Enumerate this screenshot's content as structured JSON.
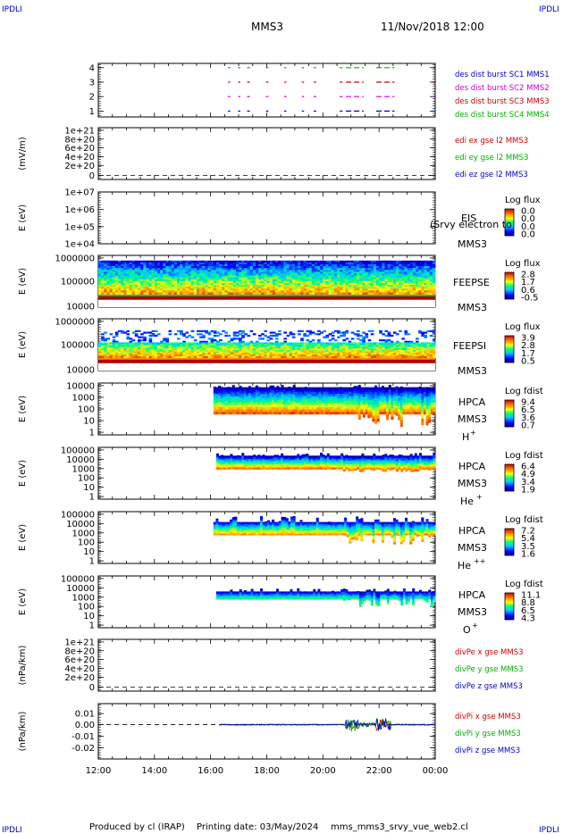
{
  "corner_tags": [
    "IPDLI",
    "IPDLI",
    "IPDLI",
    "IPDLI"
  ],
  "header": {
    "mission": "MMS3",
    "datetime": "11/Nov/2018 12:00"
  },
  "footer": {
    "produced_by": "Produced by cl (IRAP)",
    "printing_date": "Printing date: 03/May/2024",
    "script": "mms_mms3_srvy_vue_web2.cl"
  },
  "colors": {
    "black": "#000000",
    "red": "#cc0000",
    "green": "#00b000",
    "blue": "#0000cc",
    "magenta": "#cc00cc",
    "dashed_zero": "#000000"
  },
  "chart_data": {
    "type": "heatmap",
    "time_axis": {
      "range": [
        "12:00",
        "00:00"
      ],
      "ticks": [
        "12:00",
        "14:00",
        "16:00",
        "18:00",
        "20:00",
        "22:00",
        "00:00"
      ]
    },
    "panels": [
      {
        "id": "burst",
        "type": "scatter",
        "yticks": [
          "4",
          "3",
          "2",
          "1"
        ],
        "ylim": [
          0.5,
          4.5
        ],
        "legend": [
          {
            "text": "des dist burst SC1 MMS1",
            "color": "#0000cc"
          },
          {
            "text": "des dist burst SC2 MMS2",
            "color": "#cc00cc"
          },
          {
            "text": "des dist burst SC3 MMS3",
            "color": "#cc0000"
          },
          {
            "text": "des dist burst SC4 MMS4",
            "color": "#00b000"
          }
        ],
        "series": [
          {
            "level": 4,
            "color": "#00b000"
          },
          {
            "level": 3,
            "color": "#cc0000"
          },
          {
            "level": 2,
            "color": "#cc00cc"
          },
          {
            "level": 1,
            "color": "#0000cc"
          }
        ],
        "intervals": [
          [
            16.62,
            16.7
          ],
          [
            16.98,
            17.06
          ],
          [
            17.3,
            17.4
          ],
          [
            17.97,
            18.06
          ],
          [
            18.62,
            18.7
          ],
          [
            19.25,
            19.33
          ],
          [
            19.67,
            19.76
          ],
          [
            20.6,
            20.7
          ],
          [
            20.82,
            21.45
          ],
          [
            21.9,
            22.55
          ]
        ]
      },
      {
        "id": "edi",
        "type": "line",
        "ylabel": "(mV/m)",
        "yticks": [
          "1e+21",
          "8e+20",
          "6e+20",
          "4e+20",
          "2e+20",
          "0"
        ],
        "ylim": [
          0,
          1e+21
        ],
        "legend": [
          {
            "text": "edi ex gse l2 MMS3",
            "color": "#cc0000"
          },
          {
            "text": "edi ey gse l2 MMS3",
            "color": "#00b000"
          },
          {
            "text": "edi ez gse l2 MMS3",
            "color": "#0000cc"
          }
        ]
      },
      {
        "id": "eis",
        "type": "heatmap",
        "ylabel": "E (eV)",
        "yticks": [
          "1e+07",
          "1e+06",
          "1e+05",
          "1e+04"
        ],
        "ylim": [
          10000.0,
          10000000.0
        ],
        "instrument": "EIS",
        "spacecraft": "MMS3",
        "overlay": "(Srvy electron to",
        "cbar_title": "Log flux",
        "cbar_ticks": [
          "0.0",
          "0.0",
          "0.0",
          "0.0"
        ]
      },
      {
        "id": "feepse",
        "type": "heatmap",
        "ylabel": "E (eV)",
        "yticks": [
          "1000000",
          "100000",
          "10000"
        ],
        "ylim": [
          10000.0,
          1000000.0
        ],
        "instrument": "FEEPSE",
        "spacecraft": "MMS3",
        "cbar_title": "Log flux",
        "cbar_ticks": [
          "2.8",
          "1.7",
          "0.6",
          "-0.5"
        ]
      },
      {
        "id": "feepsi",
        "type": "heatmap",
        "ylabel": "E (eV)",
        "yticks": [
          "1000000",
          "100000",
          "10000"
        ],
        "ylim": [
          10000.0,
          1000000.0
        ],
        "instrument": "FEEPSI",
        "spacecraft": "MMS3",
        "cbar_title": "Log flux",
        "cbar_ticks": [
          "3.9",
          "2.8",
          "1.7",
          "0.5"
        ]
      },
      {
        "id": "hpca_h",
        "type": "heatmap",
        "ylabel": "E (eV)",
        "yticks": [
          "10000",
          "1000",
          "100",
          "10",
          "1"
        ],
        "ylim": [
          1,
          30000
        ],
        "instrument": "HPCA",
        "spacecraft": "MMS3",
        "species": "H",
        "charge": "+",
        "cbar_title": "Log fdist",
        "cbar_ticks": [
          "9.4",
          "6.5",
          "3.6",
          "0.7"
        ],
        "start_hour": 16.1
      },
      {
        "id": "hpca_he1",
        "type": "heatmap",
        "ylabel": "E (eV)",
        "yticks": [
          "100000",
          "10000",
          "1000",
          "100",
          "10",
          "1"
        ],
        "ylim": [
          1,
          100000
        ],
        "instrument": "HPCA",
        "spacecraft": "MMS3",
        "species": "He",
        "charge": "+",
        "cbar_title": "Log fdist",
        "cbar_ticks": [
          "6.4",
          "4.9",
          "3.4",
          "1.9"
        ],
        "start_hour": 16.2
      },
      {
        "id": "hpca_he2",
        "type": "heatmap",
        "ylabel": "E (eV)",
        "yticks": [
          "100000",
          "10000",
          "1000",
          "100",
          "10",
          "1"
        ],
        "ylim": [
          1,
          100000
        ],
        "instrument": "HPCA",
        "spacecraft": "MMS3",
        "species": "He",
        "charge": "++",
        "cbar_title": "Log fdist",
        "cbar_ticks": [
          "7.2",
          "5.4",
          "3.5",
          "1.6"
        ],
        "start_hour": 16.1
      },
      {
        "id": "hpca_o",
        "type": "heatmap",
        "ylabel": "E (eV)",
        "yticks": [
          "100000",
          "10000",
          "1000",
          "100",
          "10",
          "1"
        ],
        "ylim": [
          1,
          100000
        ],
        "instrument": "HPCA",
        "spacecraft": "MMS3",
        "species": "O",
        "charge": "+",
        "cbar_title": "Log fdist",
        "cbar_ticks": [
          "11.1",
          "8.8",
          "6.5",
          "4.3"
        ],
        "start_hour": 16.2
      },
      {
        "id": "divpe",
        "type": "line",
        "ylabel": "(nPa/km)",
        "yticks": [
          "1e+21",
          "8e+20",
          "6e+20",
          "4e+20",
          "2e+20",
          "0"
        ],
        "ylim": [
          0,
          1e+21
        ],
        "legend": [
          {
            "text": "divPe x gse MMS3",
            "color": "#cc0000"
          },
          {
            "text": "divPe y gse MMS3",
            "color": "#00b000"
          },
          {
            "text": "divPe z gse MMS3",
            "color": "#0000cc"
          }
        ]
      },
      {
        "id": "divpi",
        "type": "line",
        "ylabel": "(nPa/km)",
        "yticks": [
          "0.01",
          "0.00",
          "-0.01",
          "-0.02"
        ],
        "ylim": [
          -0.025,
          0.015
        ],
        "legend": [
          {
            "text": "divPi x gse MMS3",
            "color": "#cc0000"
          },
          {
            "text": "divPi y gse MMS3",
            "color": "#00b000"
          },
          {
            "text": "divPi z gse MMS3",
            "color": "#0000cc"
          }
        ],
        "start_hour": 16.3
      }
    ]
  }
}
